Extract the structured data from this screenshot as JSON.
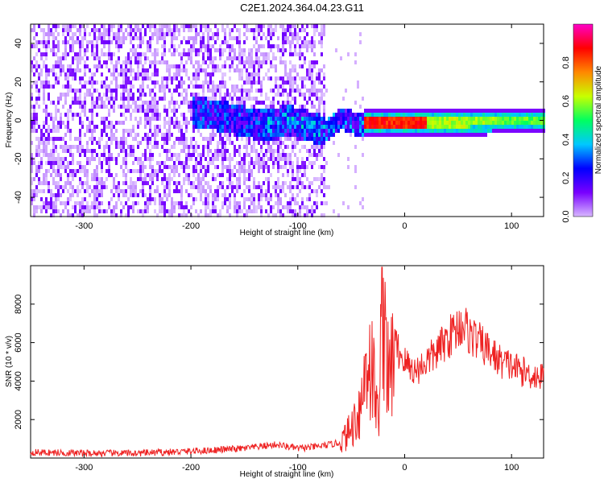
{
  "title": "C2E1.2024.364.04.23.G11",
  "chart_data": [
    {
      "type": "heatmap",
      "title": "C2E1.2024.364.04.23.G11",
      "xlabel": "Height of straight line (km)",
      "ylabel": "Frequency (Hz)",
      "xlim": [
        -350,
        130
      ],
      "ylim": [
        -50,
        50
      ],
      "x_ticks": [
        -300,
        -200,
        -100,
        0,
        100
      ],
      "y_ticks": [
        -40,
        -20,
        0,
        20,
        40
      ],
      "colorbar": {
        "label": "Normalized spectral amplitude",
        "range": [
          0,
          1
        ],
        "ticks": [
          0.0,
          0.2,
          0.4,
          0.6,
          0.8
        ],
        "colormap": [
          "#d8b8ff",
          "#7800ff",
          "#0000ff",
          "#00c8ff",
          "#00ff60",
          "#c8ff00",
          "#ff8800",
          "#ff0000",
          "#ff00c8"
        ]
      },
      "ridge": [
        {
          "x": -195,
          "y": 5
        },
        {
          "x": -170,
          "y": 3
        },
        {
          "x": -150,
          "y": 0
        },
        {
          "x": -130,
          "y": -2
        },
        {
          "x": -110,
          "y": 1
        },
        {
          "x": -90,
          "y": -2
        },
        {
          "x": -75,
          "y": -5
        },
        {
          "x": -60,
          "y": 2
        },
        {
          "x": -45,
          "y": -1
        },
        {
          "x": -30,
          "y": 0
        },
        {
          "x": 0,
          "y": 0
        },
        {
          "x": 50,
          "y": 0
        },
        {
          "x": 100,
          "y": 1
        },
        {
          "x": 130,
          "y": 1
        }
      ]
    },
    {
      "type": "line",
      "xlabel": "Height of straight line (km)",
      "ylabel": "SNR (10 * v/v)",
      "xlim": [
        -350,
        130
      ],
      "ylim": [
        0,
        10000
      ],
      "x_ticks": [
        -300,
        -200,
        -100,
        0,
        100
      ],
      "y_ticks": [
        2000,
        4000,
        6000,
        8000
      ],
      "color": "#ee2222",
      "x": [
        -350,
        -300,
        -250,
        -200,
        -150,
        -120,
        -100,
        -80,
        -60,
        -50,
        -40,
        -35,
        -30,
        -25,
        -20,
        -15,
        -10,
        0,
        10,
        20,
        30,
        40,
        50,
        55,
        60,
        70,
        80,
        90,
        100,
        110,
        120,
        130
      ],
      "y": [
        300,
        250,
        250,
        350,
        500,
        700,
        500,
        600,
        800,
        1500,
        3000,
        5500,
        4500,
        2000,
        9500,
        3500,
        6000,
        5000,
        4500,
        5000,
        5500,
        6200,
        6800,
        7000,
        6500,
        6000,
        5500,
        5000,
        4800,
        4500,
        4300,
        4200
      ]
    }
  ]
}
